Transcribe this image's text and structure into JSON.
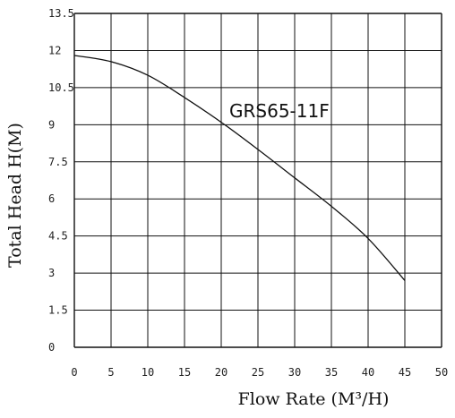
{
  "chart_data": {
    "type": "line",
    "xlabel": "Flow Rate (M³/H)",
    "ylabel": "Total Head H(M)",
    "xlim": [
      0,
      50
    ],
    "ylim": [
      0,
      13.5
    ],
    "x_ticks": [
      "0",
      "5",
      "10",
      "15",
      "20",
      "25",
      "30",
      "35",
      "40",
      "45",
      "50"
    ],
    "y_ticks": [
      "0",
      "1.5",
      "3",
      "4.5",
      "6",
      "7.5",
      "9",
      "10.5",
      "12",
      "13.5"
    ],
    "grid": true,
    "series": [
      {
        "name": "GRS65-11F",
        "x": [
          0,
          5,
          10,
          15,
          20,
          25,
          30,
          35,
          40,
          45
        ],
        "y": [
          11.8,
          11.55,
          11.0,
          10.1,
          9.1,
          8.0,
          6.85,
          5.7,
          4.4,
          2.7
        ]
      }
    ]
  }
}
